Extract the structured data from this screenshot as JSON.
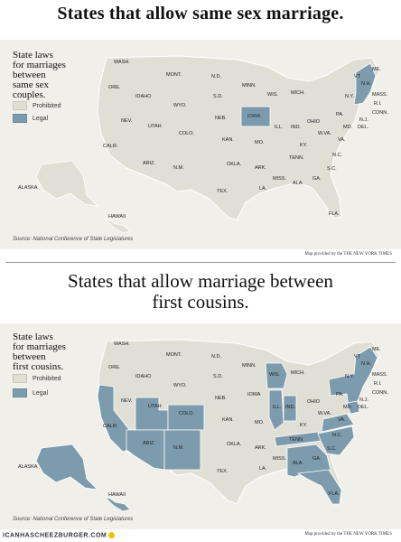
{
  "panels": [
    {
      "title": "States that allow same sex marriage.",
      "legend_heading": [
        "State laws",
        "for marriages",
        "between",
        "same sex",
        "couples."
      ],
      "legend_items": [
        {
          "label": "Prohibited",
          "color": "#e0dfd6"
        },
        {
          "label": "Legal",
          "color": "#7c9bad"
        }
      ],
      "source": "Source: National Conference of State Legislatures",
      "credit": "Map provided by the THE NEW YORK TIMES",
      "legal_states": [
        "IOWA",
        "VT",
        "N.H.",
        "MASS.",
        "CONN.",
        "MAINE"
      ],
      "labels": [
        "WASH.",
        "ORE.",
        "CALIF.",
        "NEV.",
        "IDAHO",
        "MONT.",
        "WYO.",
        "UTAH",
        "ARIZ.",
        "COLO.",
        "N.M.",
        "N.D.",
        "S.D.",
        "NEB.",
        "KAN.",
        "OKLA.",
        "TEX.",
        "MINN.",
        "IOWA",
        "MO.",
        "ARK.",
        "LA.",
        "WIS.",
        "ILL.",
        "MICH.",
        "IND.",
        "OHIO",
        "KY.",
        "TENN.",
        "MISS.",
        "ALA.",
        "GA.",
        "FLA.",
        "S.C.",
        "N.C.",
        "VA.",
        "W.VA.",
        "PA.",
        "N.Y.",
        "VT",
        "N.H.",
        "ME.",
        "MASS.",
        "R.I.",
        "CONN.",
        "N.J.",
        "DEL.",
        "MD.",
        "ALASKA",
        "HAWAII"
      ]
    },
    {
      "title": "States that allow marriage between first cousins.",
      "legend_heading": [
        "State laws",
        "for marriages",
        "between",
        "first cousins."
      ],
      "legend_items": [
        {
          "label": "Prohibited",
          "color": "#e0dfd6"
        },
        {
          "label": "Legal",
          "color": "#7c9bad"
        }
      ],
      "source": "Source: National Conference of State Legislatures",
      "credit": "Map provided by the THE NEW YORK TIMES",
      "legal_states": [
        "CALIF.",
        "UTAH",
        "COLO.",
        "ARIZ.",
        "N.M.",
        "TEX.",
        "WIS.",
        "ILL.",
        "IND.",
        "TENN.",
        "ALA.",
        "GA.",
        "FLA.",
        "S.C.",
        "N.C.",
        "VA.",
        "MD.",
        "N.J.",
        "N.Y.",
        "VT",
        "MASS.",
        "CONN.",
        "R.I.",
        "ME.",
        "ALASKA",
        "HAWAII",
        "MICH."
      ],
      "labels": [
        "WASH.",
        "ORE.",
        "CALIF.",
        "NEV.",
        "IDAHO",
        "MONT.",
        "WYO.",
        "UTAH",
        "ARIZ.",
        "COLO.",
        "N.M.",
        "N.D.",
        "S.D.",
        "NEB.",
        "KAN.",
        "OKLA.",
        "TEX.",
        "MINN.",
        "IOWA",
        "MO.",
        "ARK.",
        "LA.",
        "WIS.",
        "ILL.",
        "MICH.",
        "IND.",
        "OHIO",
        "KY.",
        "TENN.",
        "MISS.",
        "ALA.",
        "GA.",
        "FLA.",
        "S.C.",
        "N.C.",
        "VA.",
        "W.VA.",
        "PA.",
        "N.Y.",
        "VT",
        "N.H.",
        "ME.",
        "MASS.",
        "R.I.",
        "CONN.",
        "N.J.",
        "DEL.",
        "MD.",
        "ALASKA",
        "HAWAII"
      ]
    }
  ],
  "watermark": "ICANHASCHEEZBURGER.COM"
}
